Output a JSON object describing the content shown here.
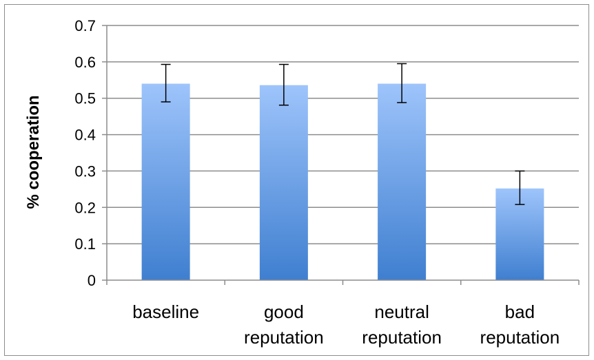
{
  "chart_data": {
    "type": "bar",
    "categories": [
      [
        "baseline"
      ],
      [
        "good",
        "reputation"
      ],
      [
        "neutral",
        "reputation"
      ],
      [
        "bad",
        "reputation"
      ]
    ],
    "series": [
      {
        "values": [
          0.54,
          0.536,
          0.54,
          0.252
        ],
        "error_low": [
          0.49,
          0.481,
          0.488,
          0.208
        ],
        "error_high": [
          0.593,
          0.593,
          0.595,
          0.3
        ]
      }
    ],
    "title": "",
    "xlabel": "",
    "ylabel": "% cooperation",
    "ylim": [
      0,
      0.7
    ],
    "yticks": [
      "0",
      "0.1",
      "0.2",
      "0.3",
      "0.4",
      "0.5",
      "0.6",
      "0.7"
    ],
    "grid": true,
    "legend": "none",
    "colors": {
      "bar_top": "#9ec4fb",
      "bar_bottom": "#3f7fd0",
      "grid": "#8c8c8c",
      "axis": "#8c8c8c",
      "error_bar": "#000000"
    }
  }
}
